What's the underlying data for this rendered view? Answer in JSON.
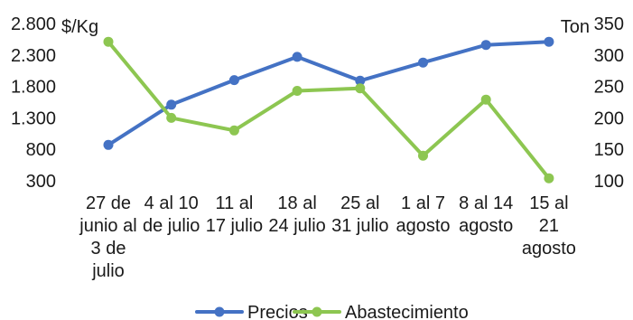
{
  "chart_data": {
    "type": "line",
    "categories": [
      [
        "27 de",
        "junio al",
        "3 de",
        "julio"
      ],
      [
        "4 al 10",
        "de julio"
      ],
      [
        "11 al",
        "17 julio"
      ],
      [
        "18 al",
        "24 julio"
      ],
      [
        "25 al",
        "31 julio"
      ],
      [
        "1 al 7",
        "agosto"
      ],
      [
        "8 al 14",
        "agosto"
      ],
      [
        "15 al",
        "21",
        "agosto"
      ]
    ],
    "left_axis": {
      "unit": "$/Kg",
      "ylim": [
        300,
        2800
      ],
      "ticks": [
        "2.800",
        "2.300",
        "1.800",
        "1.300",
        "800",
        "300"
      ],
      "tick_values": [
        2800,
        2300,
        1800,
        1300,
        800,
        300
      ]
    },
    "right_axis": {
      "unit": "Ton",
      "ylim": [
        100,
        350
      ],
      "ticks": [
        "350",
        "300",
        "250",
        "200",
        "150",
        "100"
      ],
      "tick_values": [
        350,
        300,
        250,
        200,
        150,
        100
      ]
    },
    "series": [
      {
        "name": "Precios",
        "axis": "left",
        "color": "#4472C4",
        "values": [
          870,
          1510,
          1900,
          2270,
          1890,
          2180,
          2460,
          2510
        ]
      },
      {
        "name": "Abastecimiento",
        "axis": "right",
        "color": "#8DC651",
        "values": [
          321,
          200,
          180,
          243,
          247,
          140,
          229,
          104
        ]
      }
    ],
    "grid": false,
    "legend": "bottom"
  }
}
